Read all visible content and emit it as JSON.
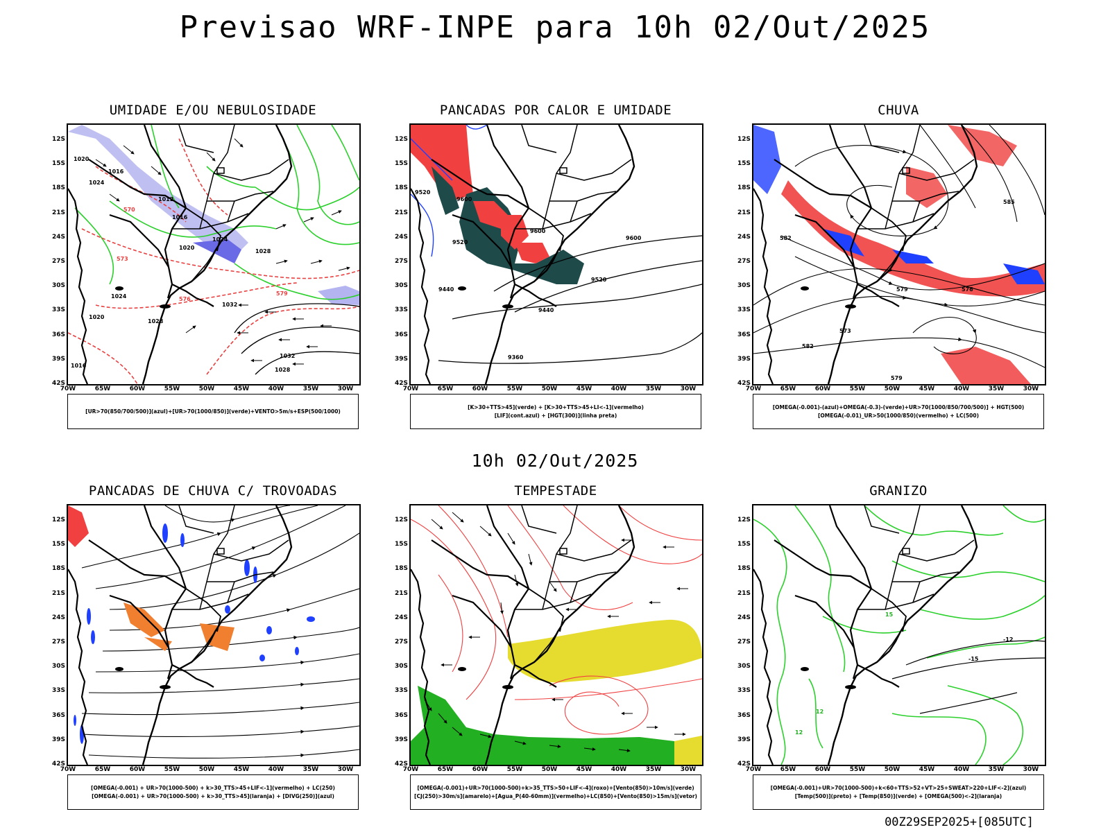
{
  "title": "Previsao WRF-INPE  para 10h 02/Out/2025",
  "middle_title": "10h 02/Out/2025",
  "run_label": "00Z29SEP2025+[085UTC]",
  "axes": {
    "lat_labels": [
      "12S",
      "15S",
      "18S",
      "21S",
      "24S",
      "27S",
      "30S",
      "33S",
      "36S",
      "39S",
      "42S"
    ],
    "lon_labels": [
      "70W",
      "65W",
      "60W",
      "55W",
      "50W",
      "45W",
      "40W",
      "35W",
      "30W"
    ]
  },
  "panels": [
    {
      "id": "umidade",
      "title": "UMIDADE E/OU NEBULOSIDADE",
      "legend": [
        "[UR>70(850/700/500)](azul)+[UR>70(1000/850)](verde)+VENTO>5m/s+ESP(500/1000)"
      ],
      "contour_labels": [
        "1020",
        "1016",
        "1024",
        "1012",
        "1016",
        "1020",
        "1024",
        "1028",
        "1032",
        "1024",
        "1020",
        "1028",
        "1016",
        "1032",
        "1028",
        "570",
        "573",
        "576",
        "579"
      ]
    },
    {
      "id": "pancadas-calor",
      "title": "PANCADAS POR CALOR E UMIDADE",
      "legend": [
        "[K>30+TTS>45](verde) + [K>30+TTS>45+LI<-1](vermelho)",
        "[LIF](cont.azul) + [HGT(300)](linha preta)"
      ],
      "contour_labels": [
        "9520",
        "9600",
        "9600",
        "9520",
        "9600",
        "9520",
        "9440",
        "9440",
        "9360"
      ]
    },
    {
      "id": "chuva",
      "title": "CHUVA",
      "legend": [
        "[OMEGA(-0.001)-(azul)+OMEGA(-0.3)-(verde)+UR>70(1000/850/700/500)] + HGT(500)",
        "[OMEGA(-0.01)_UR>50(1000/850)(vermelho) + LC(500)"
      ],
      "contour_labels": [
        "585",
        "582",
        "579",
        "576",
        "573",
        "582",
        "579"
      ]
    },
    {
      "id": "trovoadas",
      "title": "PANCADAS DE CHUVA C/ TROVOADAS",
      "legend": [
        "[OMEGA(-0.001) + UR>70(1000-500) + k>30_TTS>45+LIF<-1](vermelho) + LC(250)",
        "[OMEGA(-0.001) + UR>70(1000-500) + k>30_TTS>45](laranja) + [DIVG(250)](azul)"
      ]
    },
    {
      "id": "tempestade",
      "title": "TEMPESTADE",
      "legend": [
        "[OMEGA(-0.001)+UR>70(1000-500)+k>35_TTS>50+LIF<-4](roxo)+[Vento(850)>10m/s](verde)",
        "[CJ(250)>30m/s](amarelo)+[Agua_P(40-60mm)](vermelho)+LC(850)+[Vento(850)>15m/s](vetor)"
      ]
    },
    {
      "id": "granizo",
      "title": "GRANIZO",
      "legend": [
        "[OMEGA(-0.001)+UR>70(1000-500)+k<60+TTS>52+VT>25+SWEAT>220+LIF<-2](azul)",
        "[Temp(500)](preto) + [Temp(850)](verde) + [OMEGA(500)<-2](laranja)"
      ],
      "contour_labels": [
        "-12",
        "-15",
        "15",
        "12",
        "12"
      ]
    }
  ]
}
